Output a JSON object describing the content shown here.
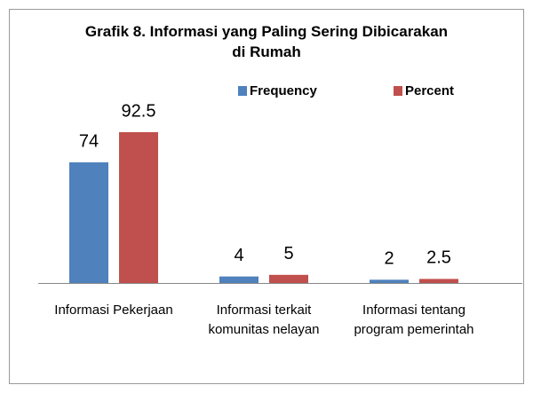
{
  "chart_data": {
    "type": "bar",
    "title": "Grafik 8. Informasi yang Paling Sering Dibicarakan di Rumah",
    "categories": [
      "Informasi Pekerjaan",
      "Informasi terkait komunitas nelayan",
      "Informasi tentang program pemerintah"
    ],
    "series": [
      {
        "name": "Frequency",
        "color": "#4f81bd",
        "values": [
          74,
          4,
          2
        ]
      },
      {
        "name": "Percent",
        "color": "#c0504d",
        "values": [
          92.5,
          5,
          2.5
        ]
      }
    ]
  }
}
